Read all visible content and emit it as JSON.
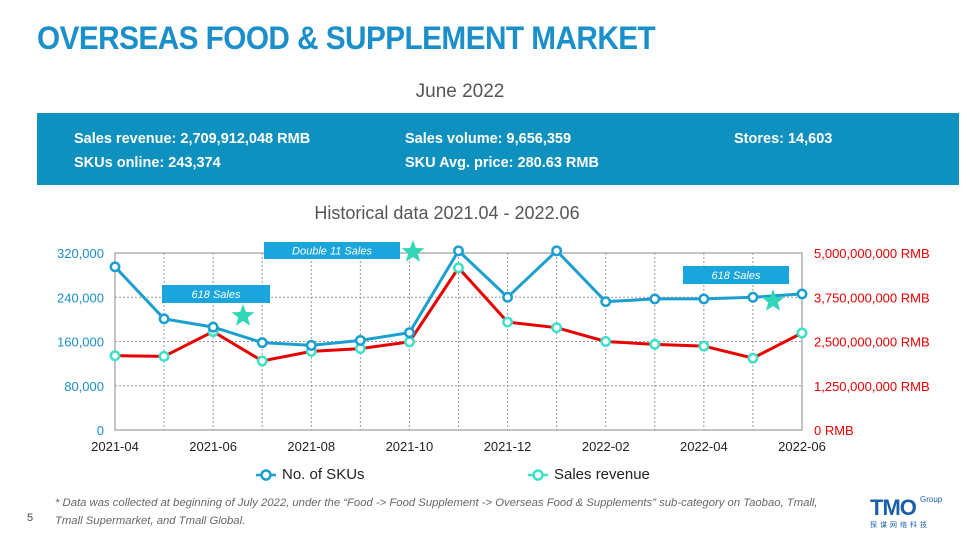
{
  "page": {
    "title": "OVERSEAS FOOD & SUPPLEMENT MARKET",
    "subtitle": "June 2022",
    "page_number": "5",
    "footnote": "* Data was collected at beginning of July 2022, under the “Food -> Food Supplement -> Overseas Food & Supplements” sub-category on Taobao, Tmall, Tmall Supermarket, and Tmall Global."
  },
  "stats": {
    "revenue": "Sales revenue: 2,709,912,048 RMB",
    "skus": "SKUs online: 243,374",
    "volume": "Sales volume: 9,656,359",
    "avg_price": "SKU Avg. price: 280.63 RMB",
    "stores": "Stores: 14,603"
  },
  "logo": {
    "text": "TMO",
    "group": "Group",
    "cn": "探谋网络科技"
  },
  "chart_data": {
    "type": "line",
    "title": "Historical data 2021.04 - 2022.06",
    "x": [
      "2021-04",
      "2021-05",
      "2021-06",
      "2021-07",
      "2021-08",
      "2021-09",
      "2021-10",
      "2021-11",
      "2021-12",
      "2022-01",
      "2022-02",
      "2022-03",
      "2022-04",
      "2022-05",
      "2022-06"
    ],
    "x_tick_labels": [
      "2021-04",
      "2021-06",
      "2021-08",
      "2021-10",
      "2021-12",
      "2022-02",
      "2022-04",
      "2022-06"
    ],
    "y_left": {
      "ticks": [
        "0",
        "80,000",
        "160,000",
        "240,000",
        "320,000"
      ],
      "range": [
        0,
        320000
      ]
    },
    "y_right": {
      "ticks": [
        "0 RMB",
        "1,250,000,000 RMB",
        "2,500,000,000 RMB",
        "3,750,000,000 RMB",
        "5,000,000,000 RMB"
      ],
      "range": [
        0,
        5000000000
      ],
      "color": "#e80000"
    },
    "grid": true,
    "legend_position": "bottom",
    "series": [
      {
        "name": "No. of SKUs",
        "axis": "left",
        "color": "#1b9fd0",
        "values": [
          295000,
          201000,
          186000,
          158000,
          153000,
          162000,
          176000,
          324000,
          240000,
          324000,
          232000,
          237000,
          237000,
          240000,
          246000
        ]
      },
      {
        "name": "Sales revenue",
        "axis": "right",
        "color": "#e80000",
        "marker_color": "#3ee0c8",
        "values": [
          2100000000,
          2080000000,
          2780000000,
          1950000000,
          2220000000,
          2300000000,
          2490000000,
          4580000000,
          3050000000,
          2890000000,
          2500000000,
          2420000000,
          2370000000,
          2030000000,
          2740000000
        ]
      }
    ],
    "annotations": [
      {
        "label": "618 Sales",
        "x": "2021-06"
      },
      {
        "label": "Double 11 Sales",
        "x": "2021-11"
      },
      {
        "label": "618 Sales",
        "x": "2022-06"
      }
    ]
  }
}
